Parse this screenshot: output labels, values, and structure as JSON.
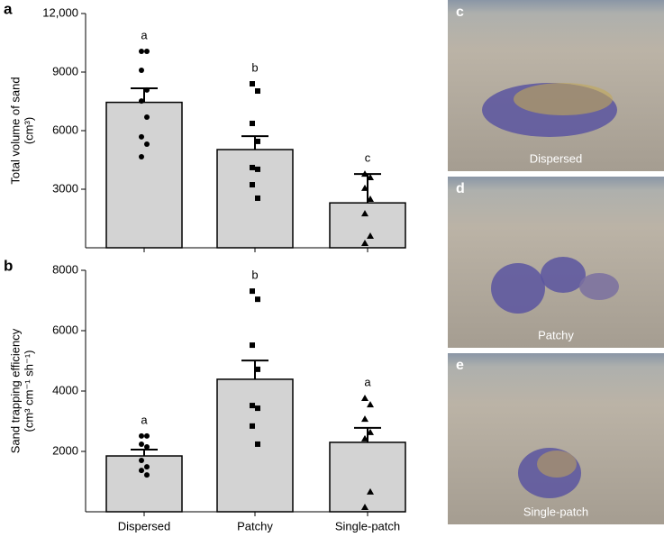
{
  "chart_data": [
    {
      "type": "bar",
      "panel": "a",
      "y_label": [
        "Total volume of sand",
        "(cm³)"
      ],
      "values": [
        7450,
        5030,
        2300
      ],
      "errors": [
        720,
        690,
        1480
      ],
      "letters": [
        "a",
        "b",
        "c"
      ],
      "markers": [
        "circle",
        "square",
        "triangle"
      ],
      "points": [
        [
          10060,
          10060,
          9090,
          8080,
          7520,
          6690,
          5680,
          5310,
          4660
        ],
        [
          8400,
          8030,
          6370,
          5450,
          4110,
          4020,
          3230,
          2540
        ],
        [
          3780,
          3600,
          3050,
          2490,
          1750,
          600,
          230
        ]
      ],
      "color": "#d3d3d3",
      "point_color": "#000000",
      "ylim": [
        0,
        12000
      ],
      "yticks": [
        {
          "value": 3000,
          "label": "3000"
        },
        {
          "value": 6000,
          "label": "6000"
        },
        {
          "value": 9000,
          "label": "9000"
        },
        {
          "value": 12000,
          "label": "12,000"
        }
      ]
    },
    {
      "type": "bar",
      "panel": "b",
      "y_label": [
        "Sand trapping efficiency",
        "(cm³ cm⁻¹ sh⁻¹)"
      ],
      "categories": [
        "Dispersed",
        "Patchy",
        "Single-patch"
      ],
      "values": [
        1850,
        4390,
        2300
      ],
      "errors": [
        210,
        620,
        480
      ],
      "letters": [
        "a",
        "b",
        "a"
      ],
      "markers": [
        "circle",
        "square",
        "triangle"
      ],
      "points": [
        [
          2510,
          2510,
          2240,
          2150,
          1700,
          1490,
          1370,
          1220
        ],
        [
          7310,
          7040,
          5520,
          4720,
          3520,
          3430,
          2840,
          2240
        ],
        [
          3760,
          3550,
          3070,
          2630,
          2420,
          660,
          150
        ]
      ],
      "color": "#d3d3d3",
      "point_color": "#000000",
      "ylim": [
        0,
        8000
      ],
      "yticks": [
        2000,
        4000,
        6000,
        8000
      ]
    }
  ],
  "photos": [
    {
      "panel": "c",
      "caption": "Dispersed"
    },
    {
      "panel": "d",
      "caption": "Patchy"
    },
    {
      "panel": "e",
      "caption": "Single-patch"
    }
  ]
}
